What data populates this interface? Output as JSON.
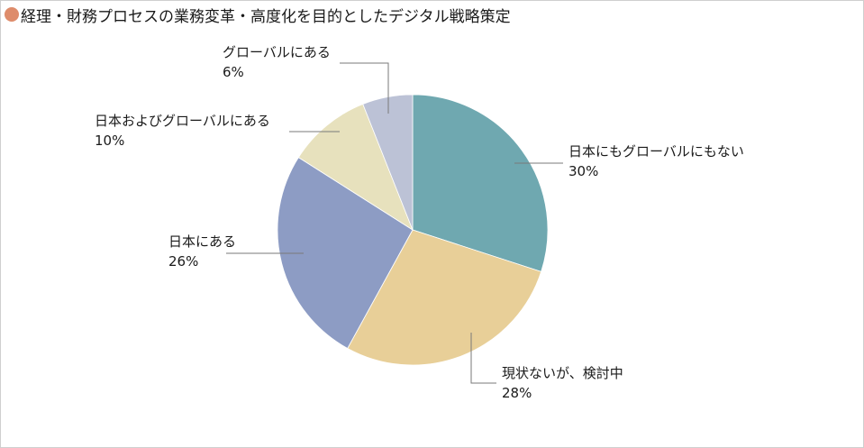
{
  "title_dot_color": "#de8c6b",
  "chart_data": {
    "type": "pie",
    "title": "経理・財務プロセスの業務変革・高度化を目的としたデジタル戦略策定",
    "slices": [
      {
        "label": "日本にもグローバルにもない",
        "value": 30,
        "percent_label": "30%",
        "color": "#6fa8b0"
      },
      {
        "label": "現状ないが、検討中",
        "value": 28,
        "percent_label": "28%",
        "color": "#e8cf98"
      },
      {
        "label": "日本にある",
        "value": 26,
        "percent_label": "26%",
        "color": "#8d9cc4"
      },
      {
        "label": "日本およびグローバルにある",
        "value": 10,
        "percent_label": "10%",
        "color": "#e7e1bd"
      },
      {
        "label": "グローバルにある",
        "value": 6,
        "percent_label": "6%",
        "color": "#bcc2d6"
      }
    ]
  }
}
